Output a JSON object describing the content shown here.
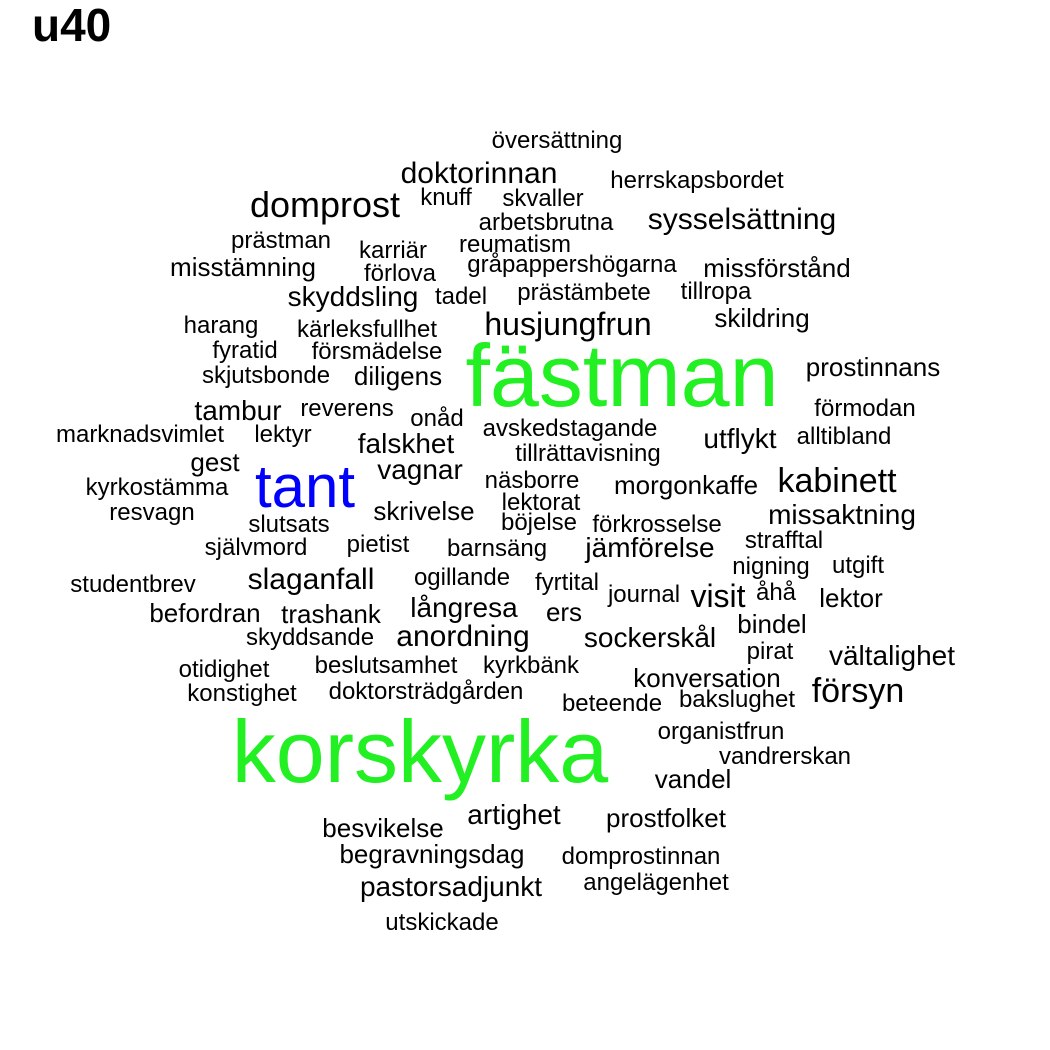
{
  "title": "u40",
  "colors": {
    "default": "#000000",
    "green": "#22f022",
    "blue": "#0000ff"
  },
  "words": [
    {
      "text": "fästman",
      "color": "green"
    },
    {
      "text": "korskyrka",
      "color": "green"
    },
    {
      "text": "tant",
      "color": "blue"
    },
    {
      "text": "översättning"
    },
    {
      "text": "doktorinnan"
    },
    {
      "text": "herrskapsbordet"
    },
    {
      "text": "domprost"
    },
    {
      "text": "knuff"
    },
    {
      "text": "skvaller"
    },
    {
      "text": "sysselsättning"
    },
    {
      "text": "arbetsbrutna"
    },
    {
      "text": "prästman"
    },
    {
      "text": "karriär"
    },
    {
      "text": "reumatism"
    },
    {
      "text": "misstämning"
    },
    {
      "text": "gråpappershögarna"
    },
    {
      "text": "missförstånd"
    },
    {
      "text": "förlova"
    },
    {
      "text": "skyddsling"
    },
    {
      "text": "tadel"
    },
    {
      "text": "prästämbete"
    },
    {
      "text": "tillropa"
    },
    {
      "text": "skildring"
    },
    {
      "text": "harang"
    },
    {
      "text": "kärleksfullhet"
    },
    {
      "text": "husjungfrun"
    },
    {
      "text": "fyratid"
    },
    {
      "text": "försmädelse"
    },
    {
      "text": "prostinnans"
    },
    {
      "text": "skjutsbonde"
    },
    {
      "text": "diligens"
    },
    {
      "text": "tambur"
    },
    {
      "text": "reverens"
    },
    {
      "text": "förmodan"
    },
    {
      "text": "onåd"
    },
    {
      "text": "avskedstagande"
    },
    {
      "text": "marknadsvimlet"
    },
    {
      "text": "lektyr"
    },
    {
      "text": "falskhet"
    },
    {
      "text": "utflykt"
    },
    {
      "text": "alltibland"
    },
    {
      "text": "tillrättavisning"
    },
    {
      "text": "gest"
    },
    {
      "text": "vagnar"
    },
    {
      "text": "näsborre"
    },
    {
      "text": "kabinett"
    },
    {
      "text": "kyrkostämma"
    },
    {
      "text": "morgonkaffe"
    },
    {
      "text": "lektorat"
    },
    {
      "text": "resvagn"
    },
    {
      "text": "skrivelse"
    },
    {
      "text": "böjelse"
    },
    {
      "text": "missaktning"
    },
    {
      "text": "slutsats"
    },
    {
      "text": "förkrosselse"
    },
    {
      "text": "självmord"
    },
    {
      "text": "pietist"
    },
    {
      "text": "barnsäng"
    },
    {
      "text": "jämförelse"
    },
    {
      "text": "strafftal"
    },
    {
      "text": "utgift"
    },
    {
      "text": "nigning"
    },
    {
      "text": "slaganfall"
    },
    {
      "text": "ogillande"
    },
    {
      "text": "fyrtital"
    },
    {
      "text": "studentbrev"
    },
    {
      "text": "journal"
    },
    {
      "text": "visit"
    },
    {
      "text": "åhå"
    },
    {
      "text": "lektor"
    },
    {
      "text": "befordran"
    },
    {
      "text": "trashank"
    },
    {
      "text": "långresa"
    },
    {
      "text": "ers"
    },
    {
      "text": "bindel"
    },
    {
      "text": "skyddsande"
    },
    {
      "text": "anordning"
    },
    {
      "text": "sockerskål"
    },
    {
      "text": "pirat"
    },
    {
      "text": "vältalighet"
    },
    {
      "text": "otidighet"
    },
    {
      "text": "beslutsamhet"
    },
    {
      "text": "kyrkbänk"
    },
    {
      "text": "konversation"
    },
    {
      "text": "konstighet"
    },
    {
      "text": "doktorsträdgården"
    },
    {
      "text": "försyn"
    },
    {
      "text": "beteende"
    },
    {
      "text": "bakslughet"
    },
    {
      "text": "organistfrun"
    },
    {
      "text": "vandrerskan"
    },
    {
      "text": "vandel"
    },
    {
      "text": "artighet"
    },
    {
      "text": "prostfolket"
    },
    {
      "text": "besvikelse"
    },
    {
      "text": "begravningsdag"
    },
    {
      "text": "domprostinnan"
    },
    {
      "text": "pastorsadjunkt"
    },
    {
      "text": "angelägenhet"
    },
    {
      "text": "utskickade"
    }
  ]
}
